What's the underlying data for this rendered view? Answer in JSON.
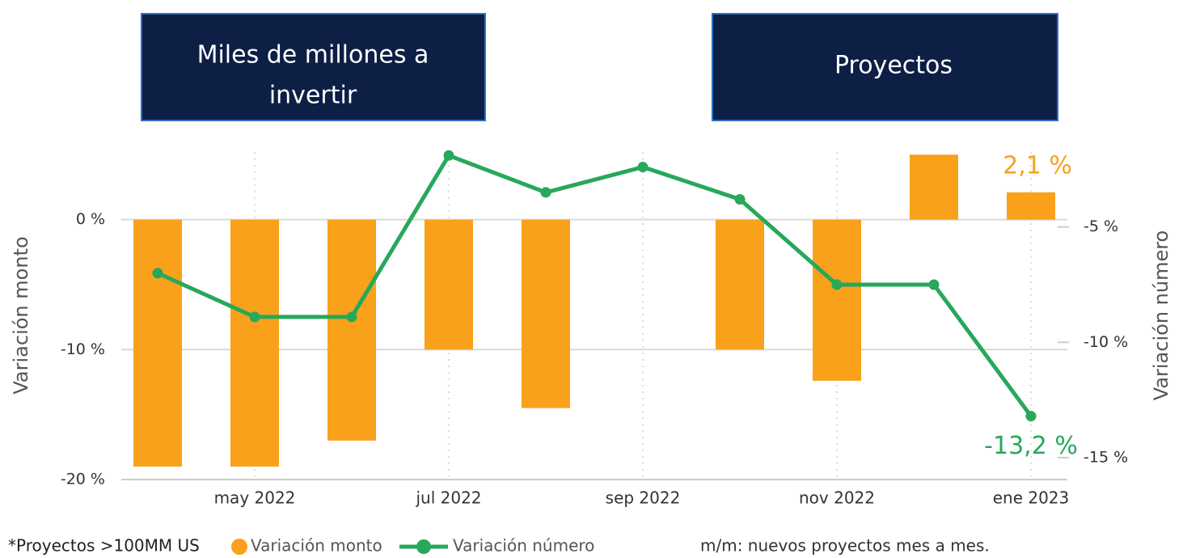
{
  "header": {
    "boxes": [
      {
        "text": [
          "Miles de millones a",
          "invertir"
        ]
      },
      {
        "text": [
          "Proyectos"
        ]
      }
    ]
  },
  "chart_data": {
    "type": "bar",
    "categories": [
      null,
      "may 2022",
      null,
      "jul 2022",
      null,
      "sep 2022",
      null,
      "nov 2022",
      null,
      "ene 2023"
    ],
    "series": [
      {
        "name": "Variación monto",
        "color": "#f9a11b",
        "values": [
          -19.0,
          -19.0,
          -17.0,
          -10.0,
          -14.5,
          null,
          -10.0,
          -12.4,
          5.0,
          2.1
        ],
        "value_labels": [
          null,
          null,
          null,
          null,
          null,
          null,
          null,
          null,
          null,
          "2,1 %"
        ]
      },
      {
        "name": "Variación número",
        "color": "#27a85a",
        "type": "line",
        "axis": "y2",
        "values": [
          -7.0,
          -8.9,
          -8.9,
          -1.9,
          -3.5,
          -2.4,
          -3.8,
          -7.5,
          -7.5,
          -13.2
        ],
        "value_labels": [
          null,
          null,
          null,
          null,
          null,
          null,
          null,
          null,
          null,
          "-13,2 %"
        ]
      }
    ],
    "ylabel": "Variación monto",
    "y2label": "Variación número",
    "ylim": [
      -20,
      5.2
    ],
    "yticks": [
      {
        "value": 0,
        "label": "0 %"
      },
      {
        "value": -10,
        "label": "-10 %"
      },
      {
        "value": -20,
        "label": "-20 %"
      }
    ],
    "y2lim": [
      -15.95,
      -1.75
    ],
    "y2ticks": [
      {
        "value": -5,
        "label": "-5 %"
      },
      {
        "value": -10,
        "label": "-10 %"
      },
      {
        "value": -15,
        "label": "-15 %"
      }
    ],
    "grid": true,
    "footnotes": [
      "*Proyectos >100MM US",
      "m/m: nuevos proyectos mes a mes."
    ]
  }
}
